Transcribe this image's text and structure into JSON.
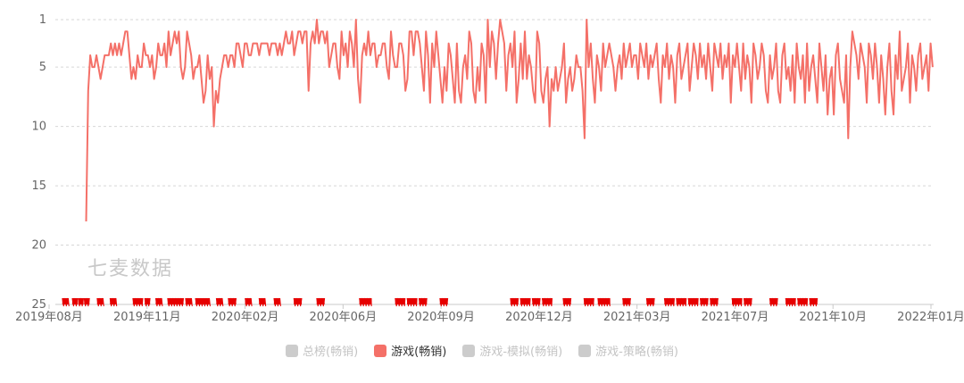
{
  "chart_data": {
    "type": "line",
    "title": "",
    "xlabel": "",
    "ylabel": "",
    "y_inverted": true,
    "ylim": [
      1,
      25
    ],
    "yticks": [
      "1",
      "5",
      "10",
      "15",
      "20",
      "25"
    ],
    "x_ticks": [
      "2019年08月",
      "2019年11月",
      "2020年02月",
      "2020年06月",
      "2020年09月",
      "2020年12月",
      "2021年03月",
      "2021年07月",
      "2021年10月",
      "2022年01月"
    ],
    "watermark": "七麦数据",
    "series": [
      {
        "name": "游戏(畅销)",
        "color": "#f47068",
        "x_start": "2019-09-01",
        "x_end": "2021-12-31",
        "values": [
          18,
          7,
          4,
          5,
          5,
          4,
          5,
          6,
          5,
          4,
          4,
          4,
          3,
          4,
          3,
          4,
          3,
          4,
          3,
          2,
          2,
          4,
          6,
          5,
          6,
          4,
          5,
          5,
          3,
          4,
          4,
          5,
          4,
          6,
          5,
          3,
          4,
          4,
          3,
          5,
          2,
          4,
          3,
          2,
          3,
          2,
          5,
          6,
          5,
          2,
          3,
          4,
          6,
          5,
          5,
          4,
          6,
          8,
          7,
          4,
          6,
          5,
          10,
          7,
          8,
          6,
          5,
          4,
          4,
          5,
          4,
          4,
          5,
          3,
          3,
          4,
          5,
          3,
          3,
          4,
          4,
          3,
          3,
          3,
          4,
          3,
          3,
          3,
          3,
          4,
          3,
          3,
          3,
          4,
          3,
          4,
          3,
          2,
          3,
          3,
          2,
          4,
          3,
          2,
          2,
          3,
          2,
          2,
          7,
          3,
          2,
          3,
          1,
          3,
          2,
          2,
          3,
          2,
          5,
          4,
          3,
          3,
          5,
          6,
          2,
          4,
          3,
          5,
          2,
          3,
          5,
          1,
          6,
          8,
          4,
          3,
          4,
          2,
          4,
          3,
          3,
          5,
          4,
          4,
          3,
          3,
          5,
          6,
          2,
          4,
          5,
          5,
          3,
          3,
          4,
          7,
          6,
          2,
          2,
          4,
          2,
          2,
          3,
          5,
          7,
          2,
          4,
          8,
          3,
          5,
          2,
          4,
          6,
          8,
          5,
          7,
          3,
          4,
          6,
          8,
          3,
          7,
          8,
          5,
          4,
          6,
          2,
          3,
          7,
          8,
          5,
          7,
          3,
          4,
          8,
          1,
          5,
          2,
          3,
          6,
          3,
          1,
          2,
          3,
          7,
          4,
          3,
          5,
          2,
          8,
          6,
          3,
          6,
          2,
          6,
          4,
          5,
          7,
          8,
          2,
          3,
          7,
          8,
          6,
          5,
          10,
          6,
          7,
          5,
          7,
          6,
          5,
          3,
          8,
          6,
          5,
          7,
          6,
          4,
          5,
          5,
          7,
          11,
          1,
          5,
          3,
          6,
          8,
          4,
          5,
          7,
          3,
          5,
          4,
          3,
          4,
          5,
          7,
          5,
          4,
          6,
          3,
          5,
          4,
          3,
          5,
          4,
          4,
          6,
          3,
          4,
          5,
          3,
          6,
          4,
          5,
          4,
          3,
          6,
          8,
          4,
          5,
          3,
          6,
          4,
          5,
          8,
          4,
          3,
          6,
          5,
          4,
          3,
          7,
          5,
          3,
          4,
          6,
          3,
          5,
          4,
          6,
          3,
          5,
          7,
          3,
          4,
          5,
          3,
          6,
          4,
          5,
          3,
          8,
          4,
          5,
          3,
          5,
          7,
          3,
          6,
          4,
          5,
          8,
          3,
          4,
          6,
          5,
          3,
          4,
          7,
          8,
          4,
          6,
          5,
          3,
          7,
          8,
          4,
          3,
          6,
          5,
          7,
          4,
          8,
          3,
          5,
          6,
          4,
          8,
          3,
          7,
          5,
          4,
          6,
          8,
          3,
          5,
          7,
          4,
          9,
          6,
          5,
          9,
          4,
          3,
          6,
          7,
          8,
          4,
          11,
          5,
          2,
          3,
          4,
          6,
          3,
          4,
          5,
          8,
          3,
          4,
          6,
          3,
          5,
          8,
          4,
          6,
          9,
          5,
          3,
          7,
          9,
          4,
          6,
          2,
          7,
          6,
          5,
          3,
          8,
          4,
          5,
          7,
          4,
          3,
          6,
          5,
          4,
          7,
          3,
          5
        ]
      }
    ],
    "bottom_markers": {
      "color": "#e60000",
      "segments": [
        [
          "2019-08-08",
          "2019-08-14"
        ],
        [
          "2019-08-18",
          "2019-08-22"
        ],
        [
          "2019-08-24",
          "2019-08-28"
        ],
        [
          "2019-08-30",
          "2019-09-03"
        ],
        [
          "2019-09-12",
          "2019-09-18"
        ],
        [
          "2019-09-25",
          "2019-10-01"
        ],
        [
          "2019-10-18",
          "2019-10-28"
        ],
        [
          "2019-10-30",
          "2019-11-03"
        ],
        [
          "2019-11-10",
          "2019-11-16"
        ],
        [
          "2019-11-22",
          "2019-12-08"
        ],
        [
          "2019-12-10",
          "2019-12-16"
        ],
        [
          "2019-12-20",
          "2020-01-03"
        ],
        [
          "2020-01-10",
          "2020-01-16"
        ],
        [
          "2020-01-22",
          "2020-01-30"
        ],
        [
          "2020-02-08",
          "2020-02-14"
        ],
        [
          "2020-02-22",
          "2020-02-28"
        ],
        [
          "2020-03-08",
          "2020-03-14"
        ],
        [
          "2020-03-28",
          "2020-04-05"
        ],
        [
          "2020-04-20",
          "2020-04-28"
        ],
        [
          "2020-06-02",
          "2020-06-14"
        ],
        [
          "2020-07-08",
          "2020-07-18"
        ],
        [
          "2020-07-20",
          "2020-07-30"
        ],
        [
          "2020-08-01",
          "2020-08-09"
        ],
        [
          "2020-08-22",
          "2020-08-30"
        ],
        [
          "2020-11-01",
          "2020-11-09"
        ],
        [
          "2020-11-11",
          "2020-11-21"
        ],
        [
          "2020-11-23",
          "2020-12-01"
        ],
        [
          "2020-12-03",
          "2020-12-13"
        ],
        [
          "2020-12-24",
          "2021-01-01"
        ],
        [
          "2021-01-14",
          "2021-01-24"
        ],
        [
          "2021-01-28",
          "2021-02-09"
        ],
        [
          "2021-02-22",
          "2021-03-02"
        ],
        [
          "2021-03-18",
          "2021-03-26"
        ],
        [
          "2021-04-05",
          "2021-04-15"
        ],
        [
          "2021-04-17",
          "2021-04-27"
        ],
        [
          "2021-04-29",
          "2021-05-09"
        ],
        [
          "2021-05-11",
          "2021-05-19"
        ],
        [
          "2021-05-21",
          "2021-05-29"
        ],
        [
          "2021-06-12",
          "2021-06-22"
        ],
        [
          "2021-06-24",
          "2021-07-02"
        ],
        [
          "2021-07-20",
          "2021-07-28"
        ],
        [
          "2021-08-05",
          "2021-08-15"
        ],
        [
          "2021-08-17",
          "2021-08-27"
        ],
        [
          "2021-08-29",
          "2021-09-06"
        ]
      ]
    }
  },
  "legend": [
    {
      "label": "总榜(畅销)",
      "color": "#cccccc",
      "active": false
    },
    {
      "label": "游戏(畅销)",
      "color": "#f47068",
      "active": true
    },
    {
      "label": "游戏-模拟(畅销)",
      "color": "#cccccc",
      "active": false
    },
    {
      "label": "游戏-策略(畅销)",
      "color": "#cccccc",
      "active": false
    }
  ]
}
